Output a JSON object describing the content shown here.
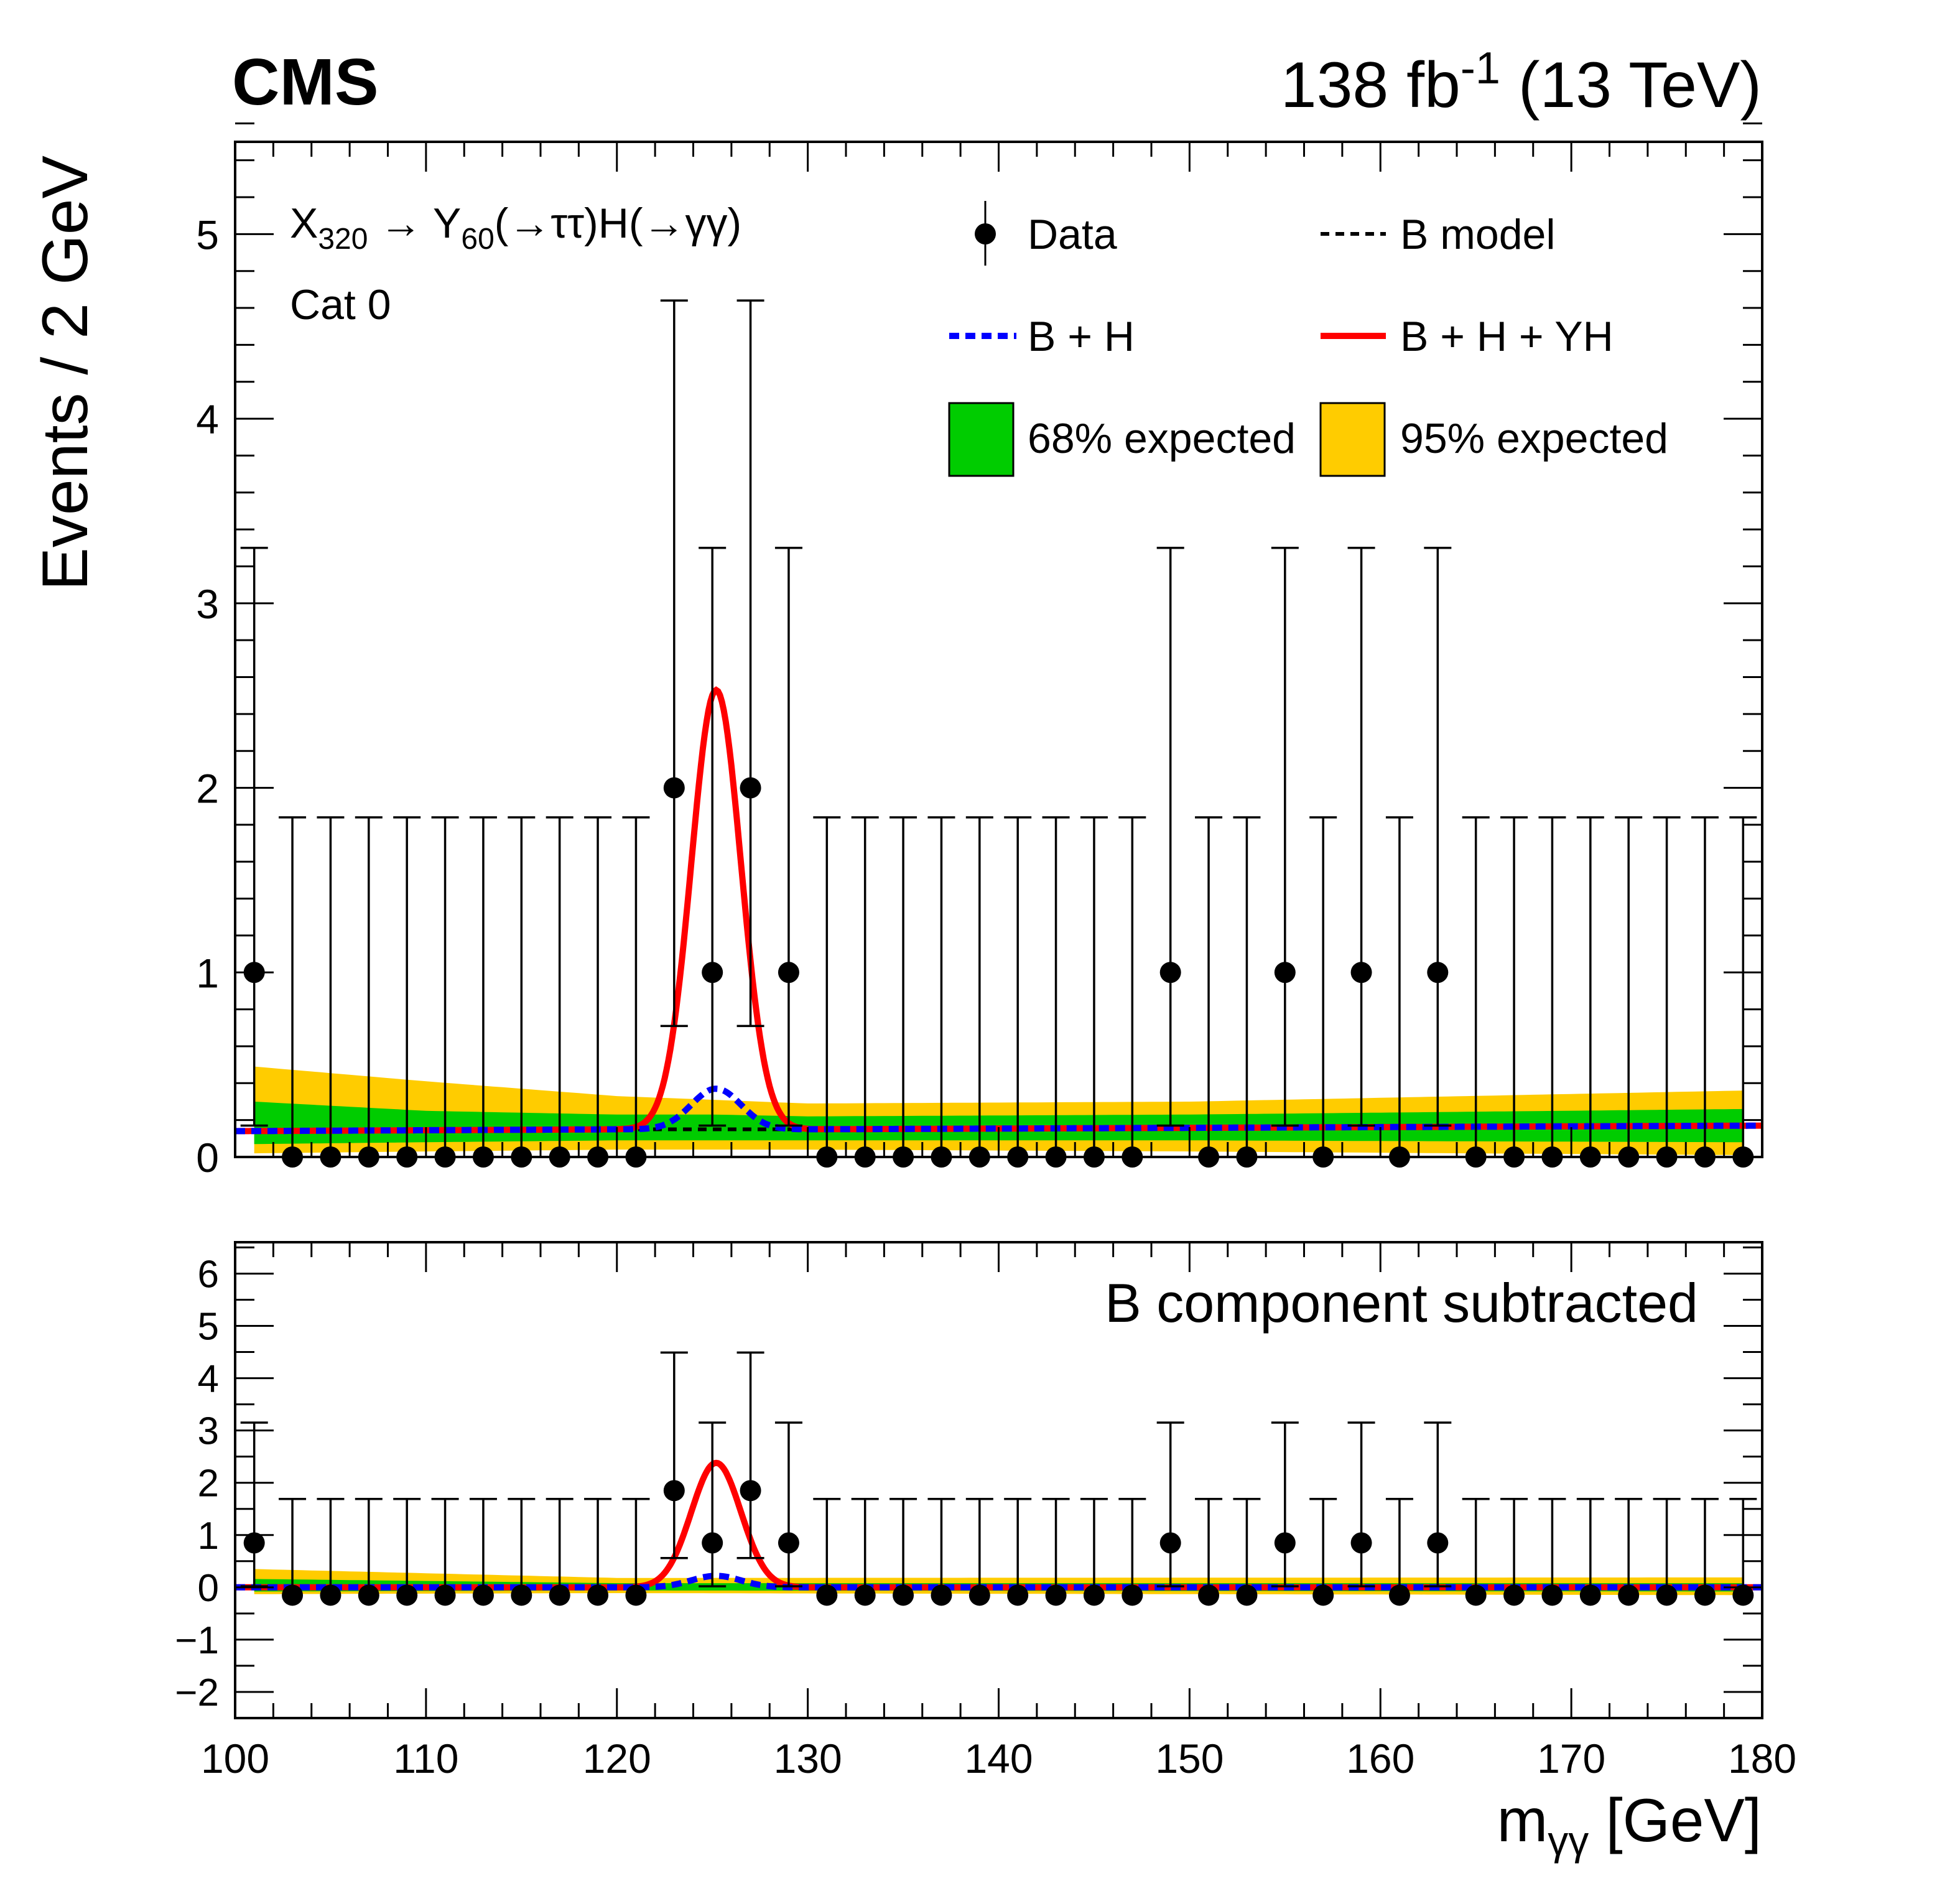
{
  "header": {
    "experiment": "CMS",
    "lumi_value": "138 fb",
    "lumi_exp": "-1",
    "energy": " (13 TeV)"
  },
  "colors": {
    "data": "#000000",
    "bmodel": "#000000",
    "bh": "#0000ff",
    "bhyh": "#ff0000",
    "band68": "#00cc00",
    "band95": "#ffcc00"
  },
  "chart_data": [
    {
      "type": "scatter",
      "panel": "main",
      "ylabel": "Events / 2 GeV",
      "xlim": [
        100,
        180
      ],
      "ylim": [
        0,
        5.5
      ],
      "yticks": [
        0,
        1,
        2,
        3,
        4,
        5
      ],
      "process": {
        "X": "X",
        "X_sub": "320",
        "arrow": " → ",
        "Y": "Y",
        "Y_sub": "60",
        "rest": "(→ττ)H(→γγ)"
      },
      "category": "Cat 0",
      "legend": {
        "data": "Data",
        "bmodel": "B model",
        "bh": "B + H",
        "bhyh": "B + H + YH",
        "band68": "68% expected",
        "band95": "95% expected"
      },
      "x": [
        101,
        103,
        105,
        107,
        109,
        111,
        113,
        115,
        117,
        119,
        121,
        123,
        125,
        127,
        129,
        131,
        133,
        135,
        137,
        139,
        141,
        143,
        145,
        147,
        149,
        151,
        153,
        155,
        157,
        159,
        161,
        163,
        165,
        167,
        169,
        171,
        173,
        175,
        177,
        179
      ],
      "values": [
        1,
        0,
        0,
        0,
        0,
        0,
        0,
        0,
        0,
        0,
        0,
        2,
        1,
        2,
        1,
        0,
        0,
        0,
        0,
        0,
        0,
        0,
        0,
        0,
        1,
        0,
        0,
        1,
        0,
        1,
        0,
        1,
        0,
        0,
        0,
        0,
        0,
        0,
        0,
        0
      ],
      "error_up": {
        "0": 1.84,
        "1": 2.3,
        "2": 2.64
      },
      "error_down": {
        "0": 0,
        "1": 0.83,
        "2": 1.29
      },
      "background": {
        "x": [
          100,
          120,
          130,
          180
        ],
        "y": [
          0.14,
          0.15,
          0.15,
          0.17
        ]
      },
      "higgs_peak": {
        "mean": 125.2,
        "sigma": 1.3,
        "amplitude": 0.22
      },
      "signal_peak": {
        "mean": 125.2,
        "sigma": 1.3,
        "amplitude": 2.38
      },
      "band68": {
        "x": [
          101,
          110,
          120,
          125,
          130,
          150,
          179
        ],
        "low": [
          0.07,
          0.08,
          0.09,
          0.09,
          0.09,
          0.09,
          0.08
        ],
        "high": [
          0.3,
          0.25,
          0.23,
          0.23,
          0.22,
          0.23,
          0.26
        ]
      },
      "band95": {
        "x": [
          101,
          110,
          120,
          125,
          130,
          150,
          179
        ],
        "low": [
          0.02,
          0.03,
          0.04,
          0.04,
          0.04,
          0.03,
          0.01
        ],
        "high": [
          0.49,
          0.41,
          0.33,
          0.31,
          0.29,
          0.3,
          0.36
        ]
      }
    },
    {
      "type": "scatter",
      "panel": "ratio",
      "label": "B component subtracted",
      "xlabel_main": "m",
      "xlabel_sub": "γγ",
      "xlabel_unit": " [GeV]",
      "xlim": [
        100,
        180
      ],
      "ylim": [
        -2.5,
        6.6
      ],
      "xticks": [
        100,
        110,
        120,
        130,
        140,
        150,
        160,
        170,
        180
      ],
      "yticks": [
        -2,
        -1,
        0,
        1,
        2,
        3,
        4,
        5,
        6
      ],
      "ytick_labels": [
        "−2",
        "−1",
        "0",
        "1",
        "2",
        "3",
        "4",
        "5",
        "6"
      ],
      "background_subtracted": 0.15,
      "band68": {
        "x": [
          101,
          120,
          180
        ],
        "low": [
          -0.08,
          -0.06,
          -0.08
        ],
        "high": [
          0.16,
          0.08,
          0.08
        ]
      },
      "band95": {
        "x": [
          101,
          120,
          180
        ],
        "low": [
          -0.13,
          -0.11,
          -0.15
        ],
        "high": [
          0.35,
          0.18,
          0.19
        ]
      }
    }
  ]
}
